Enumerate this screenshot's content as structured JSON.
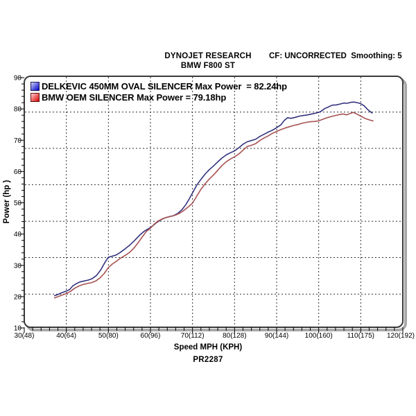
{
  "header": {
    "title": "DYNOJET RESEARCH",
    "vehicle": "BMW F800 ST",
    "correction": "CF: UNCORRECTED  Smoothing: 5"
  },
  "footer": {
    "run_id": "PR2287"
  },
  "legend": [
    {
      "label": "DELKEVIC 450MM OVAL SILENCER Max Power  = 82.24hp",
      "swatch_from": "#ccd2fa",
      "swatch_to": "#0000c8",
      "swatch_border": "#15154d"
    },
    {
      "label": "BMW OEM SILENCER Max Power = 79.18hp",
      "swatch_from": "#ffd0d0",
      "swatch_to": "#dd0000",
      "swatch_border": "#5a0f0f"
    }
  ],
  "chart_data": {
    "type": "line",
    "title": "BMW F800 ST dyno run PR2287",
    "xlabel": "Speed MPH (KPH)",
    "ylabel": "Power (hp )",
    "xlim": [
      30,
      120
    ],
    "ylim": [
      10,
      90
    ],
    "grid": "dashed",
    "legend_position": "top-left",
    "x_ticks": [
      {
        "v": 30,
        "label": "30(48)"
      },
      {
        "v": 40,
        "label": "40(64)"
      },
      {
        "v": 50,
        "label": "50(80)"
      },
      {
        "v": 60,
        "label": "60(96)"
      },
      {
        "v": 70,
        "label": "70(112)"
      },
      {
        "v": 80,
        "label": "80(128)"
      },
      {
        "v": 90,
        "label": "90(144)"
      },
      {
        "v": 100,
        "label": "100(160)"
      },
      {
        "v": 110,
        "label": "110(175)"
      },
      {
        "v": 120,
        "label": "120(192)"
      }
    ],
    "y_ticks": [
      90,
      80,
      70,
      60,
      50,
      40,
      30,
      20,
      10
    ],
    "v_gridlines_mph": [
      40,
      50,
      60,
      70,
      80,
      90,
      100,
      110
    ],
    "h_gridlines_hp": [
      79.0,
      67.4,
      55.8,
      44.1,
      32.5,
      20.8
    ],
    "series": [
      {
        "name": "DELKEVIC 450MM OVAL SILENCER",
        "max_power_hp": 82.24,
        "color": "#32327e",
        "points": [
          [
            37.2,
            20.3
          ],
          [
            38,
            20.7
          ],
          [
            39,
            21.3
          ],
          [
            40,
            21.8
          ],
          [
            40.8,
            22.3
          ],
          [
            41.5,
            23.4
          ],
          [
            42.3,
            24.1
          ],
          [
            43.2,
            24.7
          ],
          [
            44.2,
            25.0
          ],
          [
            45.2,
            25.3
          ],
          [
            46.2,
            25.8
          ],
          [
            47.2,
            26.8
          ],
          [
            48.2,
            28.6
          ],
          [
            49.2,
            31.0
          ],
          [
            50,
            32.6
          ],
          [
            50.8,
            32.9
          ],
          [
            51.8,
            33.3
          ],
          [
            52.8,
            34.1
          ],
          [
            53.8,
            35.1
          ],
          [
            55,
            36.4
          ],
          [
            56.2,
            37.9
          ],
          [
            57.4,
            39.6
          ],
          [
            58.5,
            40.9
          ],
          [
            59.5,
            41.7
          ],
          [
            60.5,
            42.6
          ],
          [
            61.5,
            43.7
          ],
          [
            62.5,
            44.6
          ],
          [
            63.5,
            45.2
          ],
          [
            64.5,
            45.6
          ],
          [
            65.5,
            45.9
          ],
          [
            66.5,
            46.6
          ],
          [
            67.5,
            47.8
          ],
          [
            68.4,
            49.4
          ],
          [
            69.2,
            51.2
          ],
          [
            70,
            53.2
          ],
          [
            71,
            55.6
          ],
          [
            72,
            57.5
          ],
          [
            73,
            59.2
          ],
          [
            74,
            60.6
          ],
          [
            75,
            61.8
          ],
          [
            76,
            63.1
          ],
          [
            77,
            64.3
          ],
          [
            78,
            65.3
          ],
          [
            79,
            66.0
          ],
          [
            80,
            66.6
          ],
          [
            81,
            67.6
          ],
          [
            82,
            68.7
          ],
          [
            83,
            69.5
          ],
          [
            84,
            69.9
          ],
          [
            85,
            70.3
          ],
          [
            86,
            71.2
          ],
          [
            87,
            71.9
          ],
          [
            88,
            72.6
          ],
          [
            89,
            73.2
          ],
          [
            90,
            74.0
          ],
          [
            91,
            74.9
          ],
          [
            91.8,
            76.3
          ],
          [
            92.6,
            77.2
          ],
          [
            93.4,
            77.0
          ],
          [
            94.4,
            77.3
          ],
          [
            95.4,
            77.7
          ],
          [
            96.4,
            77.9
          ],
          [
            97.4,
            78.1
          ],
          [
            98.4,
            78.4
          ],
          [
            99.4,
            78.7
          ],
          [
            100.4,
            79.1
          ],
          [
            101.4,
            80.1
          ],
          [
            102.4,
            80.7
          ],
          [
            103.2,
            81.2
          ],
          [
            104.2,
            81.3
          ],
          [
            105.2,
            81.6
          ],
          [
            106,
            81.9
          ],
          [
            106.8,
            81.8
          ],
          [
            107.6,
            82.1
          ],
          [
            108.4,
            82.2
          ],
          [
            109.2,
            82.0
          ],
          [
            110,
            81.7
          ],
          [
            110.8,
            81.0
          ],
          [
            111.5,
            80.0
          ],
          [
            112.1,
            79.3
          ],
          [
            112.7,
            78.7
          ]
        ]
      },
      {
        "name": "BMW OEM SILENCER",
        "max_power_hp": 79.18,
        "color": "#a65252",
        "points": [
          [
            37.2,
            19.6
          ],
          [
            38,
            20.0
          ],
          [
            39,
            20.5
          ],
          [
            40,
            21.0
          ],
          [
            41,
            21.7
          ],
          [
            42,
            22.7
          ],
          [
            43,
            23.4
          ],
          [
            44,
            23.9
          ],
          [
            45,
            24.2
          ],
          [
            46,
            24.5
          ],
          [
            47,
            25.0
          ],
          [
            48,
            26.0
          ],
          [
            49,
            27.4
          ],
          [
            50,
            29.3
          ],
          [
            51,
            30.5
          ],
          [
            52,
            31.4
          ],
          [
            53,
            32.4
          ],
          [
            54,
            33.2
          ],
          [
            55,
            34.1
          ],
          [
            56,
            35.4
          ],
          [
            57,
            37.1
          ],
          [
            58,
            39.0
          ],
          [
            59,
            40.8
          ],
          [
            60,
            41.9
          ],
          [
            61,
            43.3
          ],
          [
            62,
            44.3
          ],
          [
            63,
            45.0
          ],
          [
            64,
            45.4
          ],
          [
            65,
            45.7
          ],
          [
            66,
            46.1
          ],
          [
            67,
            46.7
          ],
          [
            68,
            47.6
          ],
          [
            69,
            48.7
          ],
          [
            70,
            49.9
          ],
          [
            71,
            52.1
          ],
          [
            72,
            54.3
          ],
          [
            73,
            56.1
          ],
          [
            74,
            57.6
          ],
          [
            75,
            58.9
          ],
          [
            76,
            60.4
          ],
          [
            77,
            61.9
          ],
          [
            78,
            63.1
          ],
          [
            79,
            64.0
          ],
          [
            80,
            64.7
          ],
          [
            81,
            65.6
          ],
          [
            82,
            66.8
          ],
          [
            83,
            68.0
          ],
          [
            84,
            68.4
          ],
          [
            85,
            68.9
          ],
          [
            86,
            69.9
          ],
          [
            87,
            70.7
          ],
          [
            88,
            71.4
          ],
          [
            89,
            72.2
          ],
          [
            90,
            72.8
          ],
          [
            91,
            73.4
          ],
          [
            92,
            73.9
          ],
          [
            93,
            74.3
          ],
          [
            94,
            74.7
          ],
          [
            95,
            75.0
          ],
          [
            96,
            75.4
          ],
          [
            97,
            75.7
          ],
          [
            98,
            75.9
          ],
          [
            99,
            76.0
          ],
          [
            100,
            76.2
          ],
          [
            101,
            76.7
          ],
          [
            102,
            77.2
          ],
          [
            103,
            77.6
          ],
          [
            104,
            77.9
          ],
          [
            105,
            78.2
          ],
          [
            105.8,
            78.4
          ],
          [
            106.6,
            78.1
          ],
          [
            107.4,
            78.5
          ],
          [
            108.2,
            78.9
          ],
          [
            109,
            78.4
          ],
          [
            110,
            77.7
          ],
          [
            111,
            77.0
          ],
          [
            112,
            76.5
          ],
          [
            112.9,
            76.2
          ]
        ]
      }
    ]
  }
}
